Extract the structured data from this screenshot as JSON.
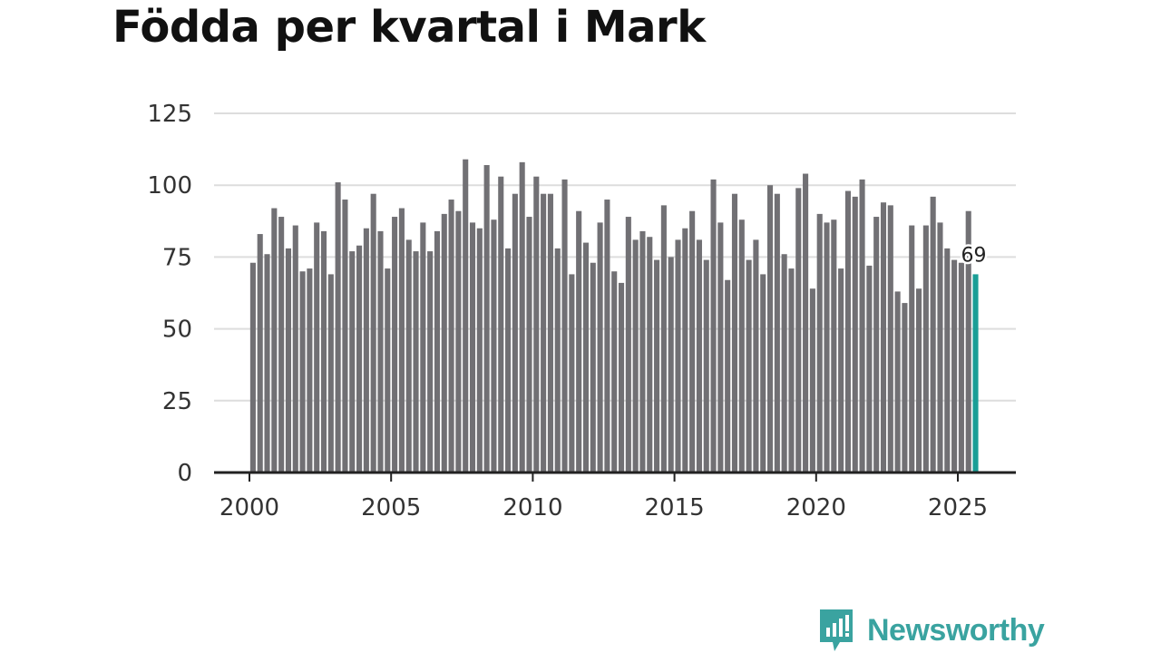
{
  "chart_data": {
    "type": "bar",
    "title": "Födda per kvartal i Mark",
    "xlabel": "",
    "ylabel": "",
    "ylim": [
      0,
      125
    ],
    "yticks": [
      "0",
      "25",
      "50",
      "75",
      "100",
      "125"
    ],
    "xlim": [
      2000,
      2025.9
    ],
    "xticks": [
      "2000",
      "2005",
      "2010",
      "2015",
      "2020",
      "2025"
    ],
    "grid": true,
    "colors": {
      "bar": "#717074",
      "highlight": "#1a9e96",
      "grid": "#dddddd",
      "axis": "#222222"
    },
    "series": [
      {
        "values": [
          73,
          83,
          76,
          92,
          89,
          78,
          86,
          70,
          71,
          87,
          84,
          69,
          101,
          95,
          77,
          79,
          85,
          97,
          84,
          71,
          89,
          92,
          81,
          77,
          87,
          77,
          84,
          90,
          95,
          91,
          109,
          87,
          85,
          107,
          88,
          103,
          78,
          97,
          108,
          89,
          103,
          97,
          97,
          78,
          102,
          69,
          91,
          80,
          73,
          87,
          95,
          70,
          66,
          89,
          81,
          84,
          82,
          74,
          93,
          75,
          81,
          85,
          91,
          81,
          74,
          102,
          87,
          67,
          97,
          88,
          74,
          81,
          69,
          100,
          97,
          76,
          71,
          99,
          104,
          64,
          90,
          87,
          88,
          71,
          98,
          96,
          102,
          72,
          89,
          94,
          93,
          63,
          59,
          86,
          64,
          86,
          96,
          87,
          78,
          74,
          73,
          91,
          69
        ]
      }
    ],
    "start": {
      "year": 2000,
      "quarter": 1
    },
    "highlight_label": "69"
  },
  "brand": {
    "name": "Newsworthy",
    "icon": "newsworthy-logo-icon"
  }
}
